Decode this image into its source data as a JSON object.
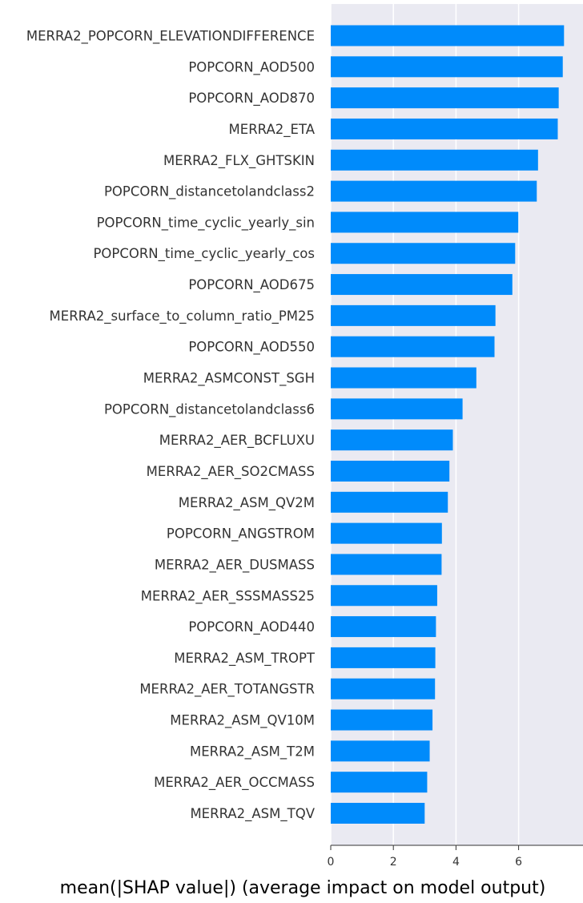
{
  "chart_data": {
    "type": "bar",
    "orientation": "horizontal",
    "xlabel": "mean(|SHAP value|) (average impact on model output)",
    "xticks": [
      0,
      2,
      4,
      6
    ],
    "xlim": [
      0,
      7.6
    ],
    "grid": true,
    "bar_color": "#008bfb",
    "categories": [
      "MERRA2_POPCORN_ELEVATIONDIFFERENCE",
      "POPCORN_AOD500",
      "POPCORN_AOD870",
      "MERRA2_ETA",
      "MERRA2_FLX_GHTSKIN",
      "POPCORN_distancetolandclass2",
      "POPCORN_time_cyclic_yearly_sin",
      "POPCORN_time_cyclic_yearly_cos",
      "POPCORN_AOD675",
      "MERRA2_surface_to_column_ratio_PM25",
      "POPCORN_AOD550",
      "MERRA2_ASMCONST_SGH",
      "POPCORN_distancetolandclass6",
      "MERRA2_AER_BCFLUXU",
      "MERRA2_AER_SO2CMASS",
      "MERRA2_ASM_QV2M",
      "POPCORN_ANGSTROM",
      "MERRA2_AER_DUSMASS",
      "MERRA2_AER_SSSMASS25",
      "POPCORN_AOD440",
      "MERRA2_ASM_TROPT",
      "MERRA2_AER_TOTANGSTR",
      "MERRA2_ASM_QV10M",
      "MERRA2_ASM_T2M",
      "MERRA2_AER_OCCMASS",
      "MERRA2_ASM_TQV"
    ],
    "values": [
      7.45,
      7.41,
      7.28,
      7.25,
      6.62,
      6.58,
      5.99,
      5.89,
      5.8,
      5.26,
      5.23,
      4.65,
      4.21,
      3.9,
      3.79,
      3.74,
      3.55,
      3.54,
      3.4,
      3.36,
      3.34,
      3.33,
      3.25,
      3.16,
      3.08,
      3.0
    ]
  }
}
